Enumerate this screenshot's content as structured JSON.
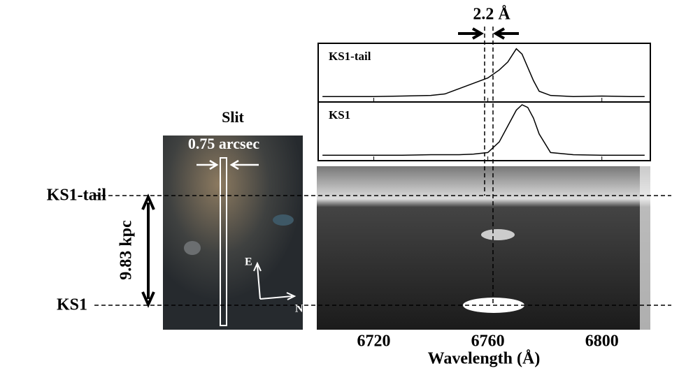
{
  "chart_data": {
    "type": "line",
    "xlabel": "Wavelength (Å)",
    "xlim": [
      6700,
      6817
    ],
    "xticks": [
      6720,
      6760,
      6800
    ],
    "ylim": [
      0,
      1
    ],
    "x": [
      6702,
      6710,
      6720,
      6730,
      6740,
      6745,
      6750,
      6755,
      6760,
      6764,
      6767,
      6770,
      6772,
      6774,
      6776,
      6778,
      6782,
      6790,
      6800,
      6810,
      6815
    ],
    "series": [
      {
        "name": "KS1-tail",
        "color": "#000000",
        "values": [
          0.05,
          0.05,
          0.05,
          0.06,
          0.07,
          0.1,
          0.2,
          0.3,
          0.4,
          0.55,
          0.7,
          0.95,
          0.85,
          0.6,
          0.35,
          0.15,
          0.07,
          0.05,
          0.06,
          0.05,
          0.05
        ]
      },
      {
        "name": "KS1",
        "color": "#000000",
        "values": [
          0.05,
          0.05,
          0.05,
          0.05,
          0.06,
          0.06,
          0.06,
          0.07,
          0.1,
          0.3,
          0.6,
          0.9,
          1.0,
          0.95,
          0.75,
          0.45,
          0.1,
          0.06,
          0.05,
          0.05,
          0.05
        ]
      }
    ],
    "offset_label": "2.2 Å",
    "slit_title": "Slit",
    "slit_width_label": "0.75 arcsec",
    "scale_label": "9.83 kpc",
    "compass": [
      "E",
      "N"
    ]
  }
}
